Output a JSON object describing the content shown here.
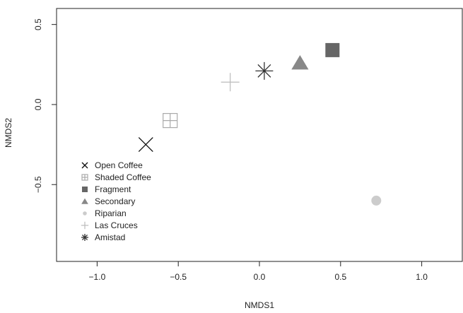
{
  "chart_data": {
    "type": "scatter",
    "title": "",
    "xlabel": "NMDS1",
    "ylabel": "NMDS2",
    "xlim": [
      -1.25,
      1.25
    ],
    "ylim": [
      -0.98,
      0.6
    ],
    "x_ticks": [
      -1.0,
      -0.5,
      0.0,
      0.5,
      1.0
    ],
    "x_tick_labels": [
      "−1.0",
      "−0.5",
      "0.0",
      "0.5",
      "1.0"
    ],
    "y_ticks": [
      -0.5,
      0.0,
      0.5
    ],
    "y_tick_labels": [
      "−0.5",
      "0.0",
      "0.5"
    ],
    "grid": false,
    "legend_position": "left",
    "series": [
      {
        "name": "Open Coffee",
        "x": -0.7,
        "y": -0.25,
        "marker": "x",
        "color": "#111111"
      },
      {
        "name": "Shaded Coffee",
        "x": -0.55,
        "y": -0.1,
        "marker": "boxplus",
        "color": "#aaaaaa"
      },
      {
        "name": "Fragment",
        "x": 0.45,
        "y": 0.34,
        "marker": "square",
        "color": "#666666"
      },
      {
        "name": "Secondary",
        "x": 0.25,
        "y": 0.26,
        "marker": "triangle",
        "color": "#888888"
      },
      {
        "name": "Riparian",
        "x": 0.72,
        "y": -0.6,
        "marker": "circle",
        "color": "#cccccc"
      },
      {
        "name": "Las Cruces",
        "x": -0.18,
        "y": 0.14,
        "marker": "plus",
        "color": "#bbbbbb"
      },
      {
        "name": "Amistad",
        "x": 0.03,
        "y": 0.21,
        "marker": "asterisk",
        "color": "#333333"
      }
    ]
  }
}
